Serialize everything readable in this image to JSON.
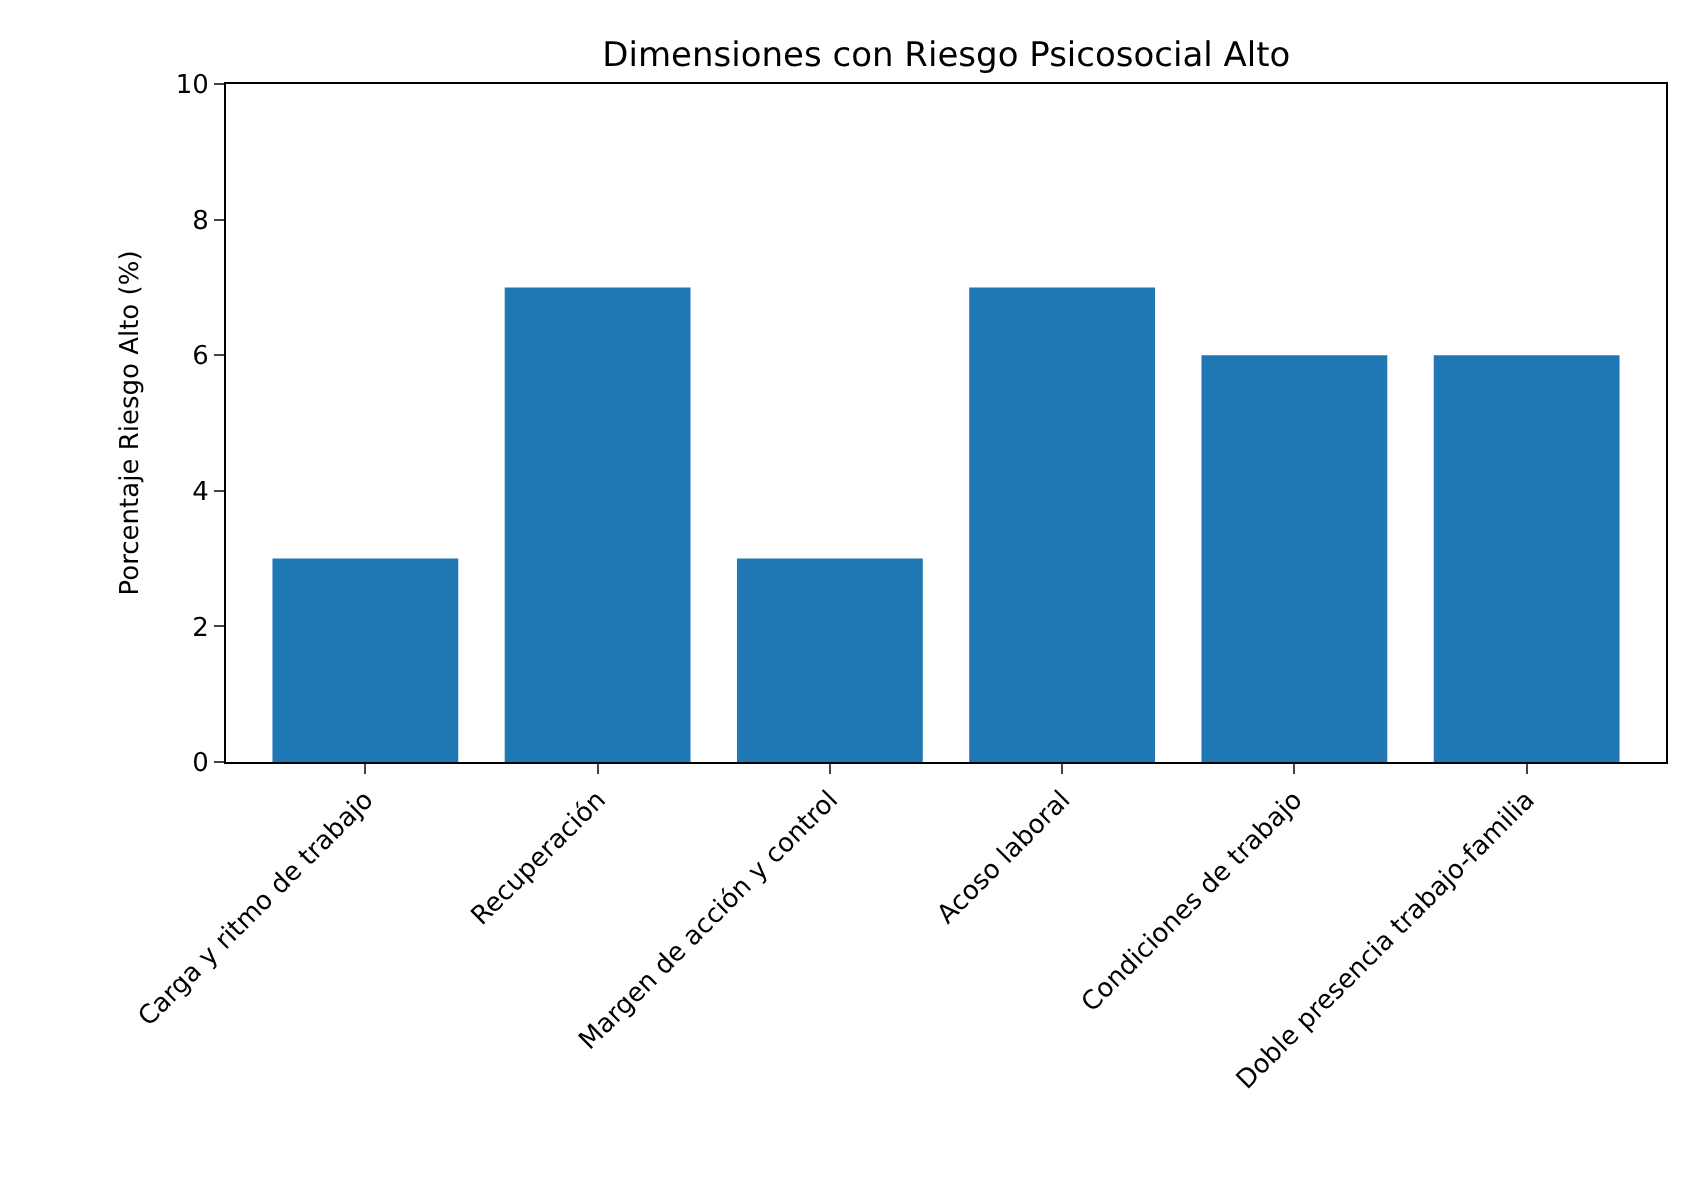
{
  "chart_data": {
    "type": "bar",
    "title": "Dimensiones con Riesgo Psicosocial Alto",
    "ylabel": "Porcentaje Riesgo Alto (%)",
    "categories": [
      "Carga y ritmo de trabajo",
      "Recuperación",
      "Margen de acción y control",
      "Acoso laboral",
      "Condiciones de trabajo",
      "Doble presencia trabajo-familia"
    ],
    "values": [
      3,
      7,
      3,
      7,
      6,
      6
    ],
    "color": "#1f77b4",
    "ylim": [
      0,
      10
    ],
    "yticks": [
      0,
      2,
      4,
      6,
      8,
      10
    ]
  }
}
